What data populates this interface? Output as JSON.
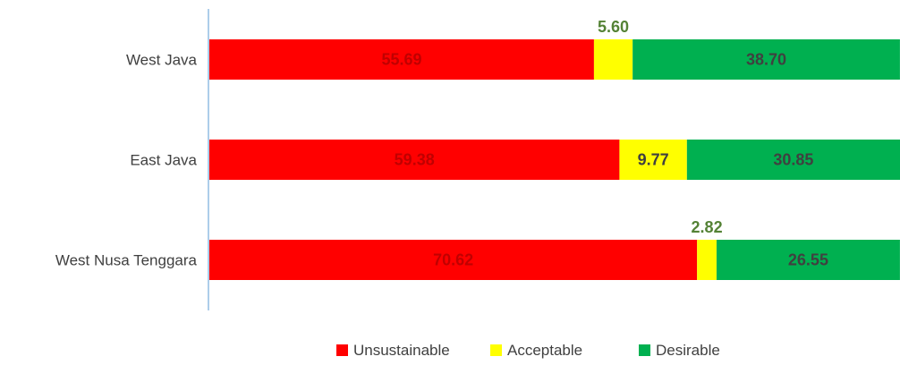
{
  "chart_data": {
    "type": "bar",
    "orientation": "horizontal",
    "stacked": true,
    "categories": [
      "West Java",
      "East Java",
      "West Nusa Tenggara"
    ],
    "series": [
      {
        "name": "Unsustainable",
        "color": "#ff0000",
        "label_color": "#c00000",
        "values": [
          55.69,
          59.38,
          70.62
        ],
        "labels": [
          "55.69",
          "59.38",
          "70.62"
        ]
      },
      {
        "name": "Acceptable",
        "color": "#ffff00",
        "label_color": "#404040",
        "values": [
          5.6,
          9.77,
          2.82
        ],
        "labels": [
          "5.60",
          "9.77",
          "2.82"
        ]
      },
      {
        "name": "Desirable",
        "color": "#00b050",
        "label_color": "#404040",
        "values": [
          38.7,
          30.85,
          26.55
        ],
        "labels": [
          "38.70",
          "30.85",
          "26.55"
        ]
      }
    ],
    "xlim": [
      0,
      100
    ],
    "grid": false,
    "legend_position": "bottom-center",
    "outside_label_color": "#548235"
  }
}
